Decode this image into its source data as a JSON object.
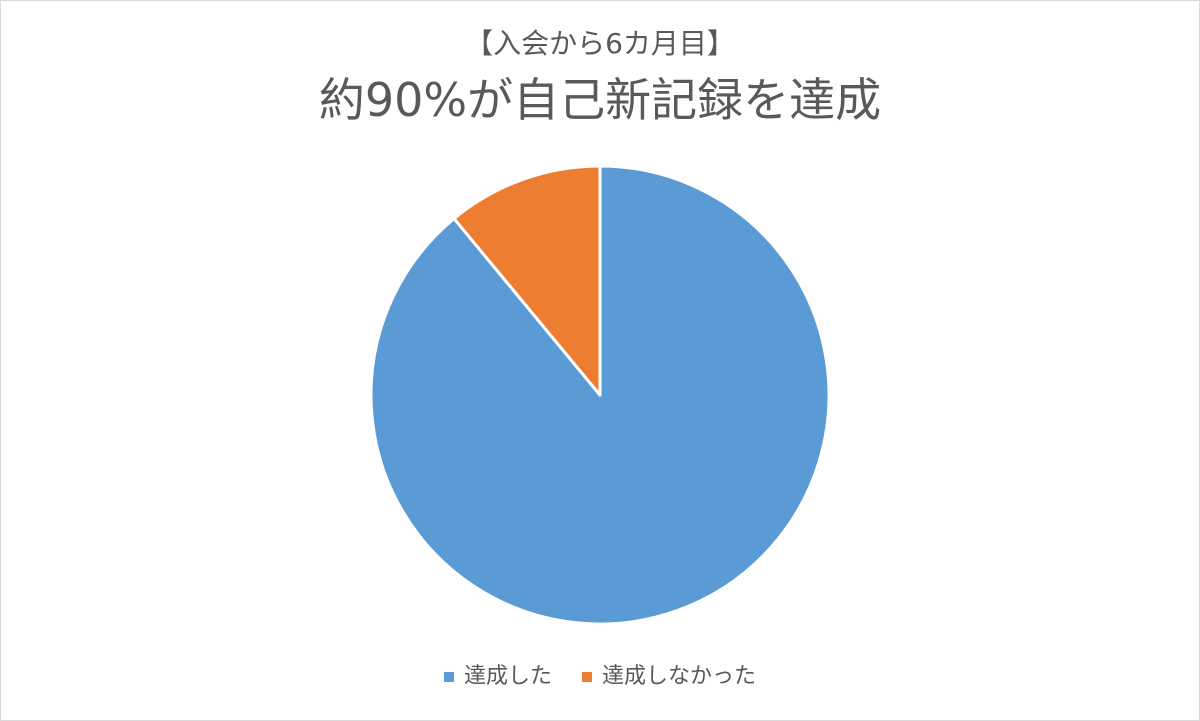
{
  "chart_data": {
    "type": "pie",
    "subtitle": "【入会から6カ月目】",
    "title": "約90%が自己新記録を達成",
    "categories": [
      "達成した",
      "達成しなかった"
    ],
    "values": [
      89,
      11
    ],
    "unit": "%",
    "colors": [
      "#5b9bd5",
      "#ed7d31"
    ],
    "start_angle_deg": 0,
    "direction": "clockwise",
    "legend_position": "bottom",
    "data_labels": false
  }
}
